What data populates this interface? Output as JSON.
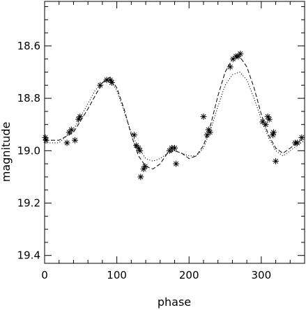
{
  "chart_data": {
    "type": "scatter",
    "title": "",
    "xlabel": "phase",
    "ylabel": "magnitude",
    "xlim": [
      0,
      360
    ],
    "ylim": [
      19.43,
      18.43
    ],
    "y_inverted": true,
    "grid": false,
    "xticks": [
      0,
      100,
      200,
      300
    ],
    "xtick_labels": [
      "0",
      "100",
      "200",
      "300"
    ],
    "yticks": [
      18.6,
      18.8,
      19.0,
      19.2,
      19.4
    ],
    "ytick_labels": [
      "18.6",
      "18.8",
      "19.0",
      "19.2",
      "19.4"
    ],
    "colors": {
      "ink": "#000000",
      "background": "#ffffff"
    },
    "series": [
      {
        "kind": "points",
        "marker": "asterisk",
        "points": [
          {
            "x": 1,
            "y": 18.95
          },
          {
            "x": 2,
            "y": 18.96
          },
          {
            "x": 31,
            "y": 18.97
          },
          {
            "x": 34,
            "y": 18.93
          },
          {
            "x": 37,
            "y": 18.92
          },
          {
            "x": 42,
            "y": 18.96
          },
          {
            "x": 47,
            "y": 18.88
          },
          {
            "x": 49,
            "y": 18.87
          },
          {
            "x": 77,
            "y": 18.75
          },
          {
            "x": 86,
            "y": 18.73
          },
          {
            "x": 91,
            "y": 18.73
          },
          {
            "x": 93,
            "y": 18.74
          },
          {
            "x": 124,
            "y": 18.94
          },
          {
            "x": 127,
            "y": 18.98
          },
          {
            "x": 130,
            "y": 18.99
          },
          {
            "x": 132,
            "y": 19.0
          },
          {
            "x": 133,
            "y": 19.1
          },
          {
            "x": 137,
            "y": 19.07
          },
          {
            "x": 139,
            "y": 19.06
          },
          {
            "x": 173,
            "y": 19.0
          },
          {
            "x": 176,
            "y": 18.99
          },
          {
            "x": 180,
            "y": 18.99
          },
          {
            "x": 182,
            "y": 19.05
          },
          {
            "x": 220,
            "y": 18.87
          },
          {
            "x": 225,
            "y": 18.94
          },
          {
            "x": 227,
            "y": 18.92
          },
          {
            "x": 229,
            "y": 18.93
          },
          {
            "x": 257,
            "y": 18.68
          },
          {
            "x": 261,
            "y": 18.65
          },
          {
            "x": 265,
            "y": 18.64
          },
          {
            "x": 268,
            "y": 18.64
          },
          {
            "x": 271,
            "y": 18.63
          },
          {
            "x": 302,
            "y": 18.89
          },
          {
            "x": 306,
            "y": 18.9
          },
          {
            "x": 309,
            "y": 18.87
          },
          {
            "x": 311,
            "y": 18.88
          },
          {
            "x": 316,
            "y": 18.94
          },
          {
            "x": 317,
            "y": 18.93
          },
          {
            "x": 320,
            "y": 19.04
          },
          {
            "x": 347,
            "y": 18.97
          },
          {
            "x": 350,
            "y": 18.97
          },
          {
            "x": 356,
            "y": 18.95
          }
        ]
      },
      {
        "kind": "curve",
        "style": "dashed",
        "x": [
          0,
          20,
          40,
          60,
          70,
          80,
          90,
          100,
          110,
          120,
          130,
          140,
          150,
          160,
          170,
          180,
          190,
          200,
          210,
          220,
          230,
          240,
          250,
          260,
          270,
          280,
          290,
          300,
          310,
          320,
          330,
          340,
          350,
          360
        ],
        "y": [
          18.96,
          18.96,
          18.93,
          18.84,
          18.79,
          18.74,
          18.72,
          18.76,
          18.84,
          18.94,
          19.02,
          19.06,
          19.07,
          19.05,
          19.01,
          19.0,
          19.01,
          19.03,
          19.02,
          18.98,
          18.9,
          18.79,
          18.7,
          18.65,
          18.64,
          18.68,
          18.76,
          18.86,
          18.94,
          18.99,
          19.01,
          18.99,
          18.97,
          18.95
        ]
      },
      {
        "kind": "curve",
        "style": "dotted",
        "x": [
          0,
          20,
          40,
          60,
          70,
          80,
          90,
          100,
          110,
          120,
          130,
          140,
          150,
          160,
          170,
          180,
          190,
          200,
          210,
          220,
          230,
          240,
          250,
          260,
          270,
          280,
          290,
          300,
          310,
          320,
          330,
          340,
          350,
          360
        ],
        "y": [
          18.97,
          18.97,
          18.92,
          18.82,
          18.77,
          18.74,
          18.73,
          18.77,
          18.85,
          18.93,
          18.99,
          19.03,
          19.04,
          19.03,
          19.01,
          19.0,
          19.01,
          19.02,
          19.02,
          18.99,
          18.92,
          18.83,
          18.75,
          18.71,
          18.7,
          18.73,
          18.8,
          18.88,
          18.95,
          19.0,
          19.02,
          19.0,
          18.98,
          18.96
        ]
      }
    ]
  }
}
